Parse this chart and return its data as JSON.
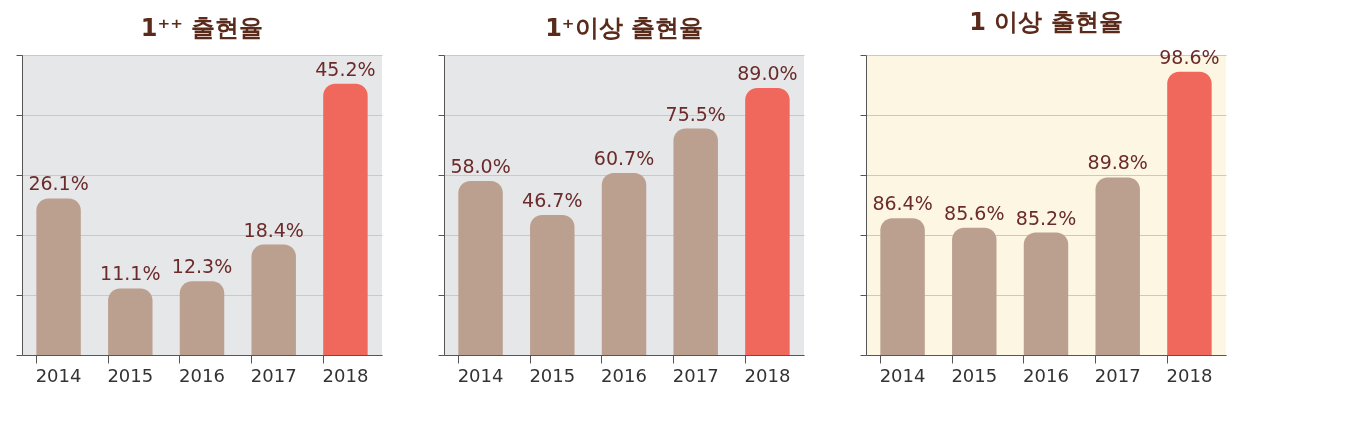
{
  "chart_data": [
    {
      "type": "bar",
      "title": "1⁺⁺ 출현율",
      "categories": [
        "2014",
        "2015",
        "2016",
        "2017",
        "2018"
      ],
      "values": [
        26.1,
        11.1,
        12.3,
        18.4,
        45.2
      ],
      "value_labels": [
        "26.1%",
        "11.1%",
        "12.3%",
        "18.4%",
        "45.2%"
      ],
      "colors": [
        "#bba08f",
        "#bba08f",
        "#bba08f",
        "#bba08f",
        "#f0685c"
      ],
      "ylim": [
        0,
        50
      ],
      "yticks": [
        {
          "value": 0,
          "label": null
        },
        {
          "value": 10,
          "label": null
        },
        {
          "value": 20,
          "label": null
        },
        {
          "value": 30,
          "label": null
        },
        {
          "value": 40,
          "label": null
        },
        {
          "value": 50,
          "label": null
        }
      ],
      "grid": "y",
      "tick_labels": "x"
    },
    {
      "type": "bar",
      "title": "1⁺이상 출현율",
      "categories": [
        "2014",
        "2015",
        "2016",
        "2017",
        "2018"
      ],
      "values": [
        58.0,
        46.7,
        60.7,
        75.5,
        89.0
      ],
      "value_labels": [
        "58.0%",
        "46.7%",
        "60.7%",
        "75.5%",
        "89.0%"
      ],
      "colors": [
        "#bba08f",
        "#bba08f",
        "#bba08f",
        "#bba08f",
        "#f0685c"
      ],
      "ylim": [
        0,
        100
      ],
      "yticks": [
        {
          "value": 0,
          "label": null
        },
        {
          "value": 20,
          "label": null
        },
        {
          "value": 40,
          "label": null
        },
        {
          "value": 60,
          "label": null
        },
        {
          "value": 80,
          "label": null
        },
        {
          "value": 100,
          "label": null
        }
      ],
      "grid": "y",
      "tick_labels": "x"
    },
    {
      "type": "bar",
      "title": "1 이상 출현율",
      "categories": [
        "2014",
        "2015",
        "2016",
        "2017",
        "2018"
      ],
      "values": [
        86.4,
        85.6,
        85.2,
        89.8,
        98.6
      ],
      "value_labels": [
        "86.4%",
        "85.6%",
        "85.2%",
        "89.8%",
        "98.6%"
      ],
      "colors": [
        "#bba08f",
        "#bba08f",
        "#bba08f",
        "#bba08f",
        "#f0685c"
      ],
      "ylim": [
        75,
        100
      ],
      "yticks": [
        {
          "value": 75,
          "label": null
        },
        {
          "value": 80,
          "label": null
        },
        {
          "value": 85,
          "label": null
        },
        {
          "value": 90,
          "label": null
        },
        {
          "value": 95,
          "label": null
        },
        {
          "value": 100,
          "label": null
        }
      ],
      "grid": "y",
      "tick_labels": "x"
    }
  ]
}
